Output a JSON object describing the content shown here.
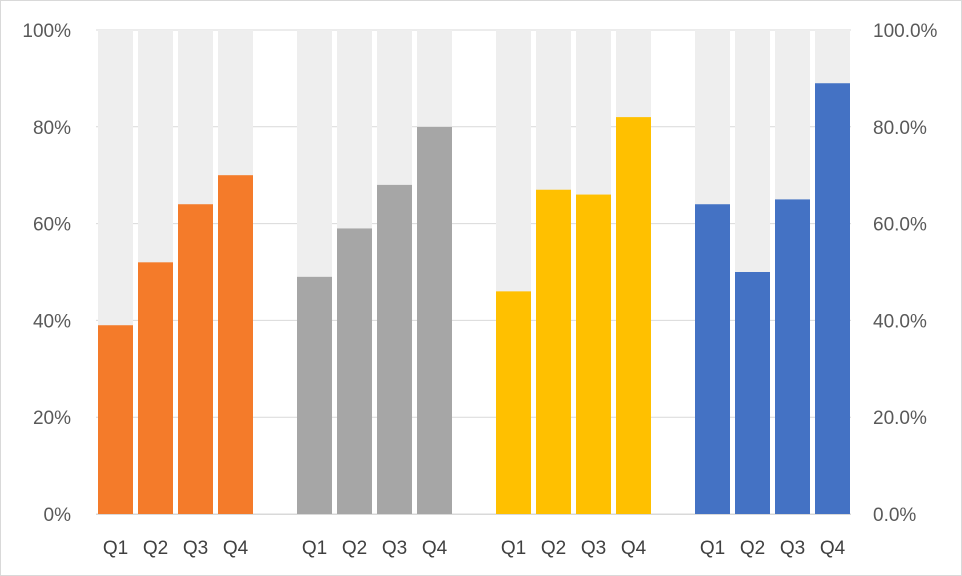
{
  "chart_data": {
    "type": "bar",
    "title": "",
    "xlabel": "",
    "ylabel": "",
    "ylim": [
      0,
      100
    ],
    "grid": true,
    "legend": "none",
    "left_axis_ticks": [
      "0%",
      "20%",
      "40%",
      "60%",
      "80%",
      "100%"
    ],
    "right_axis_ticks": [
      "0.0%",
      "20.0%",
      "40.0%",
      "60.0%",
      "80.0%",
      "100.0%"
    ],
    "background_bar_value": 100,
    "background_bar_color": "#eeeeee",
    "groups": [
      {
        "color": "#f47b2a",
        "categories": [
          "Q1",
          "Q2",
          "Q3",
          "Q4"
        ],
        "values": [
          39,
          52,
          64,
          70
        ]
      },
      {
        "color": "#a6a6a6",
        "categories": [
          "Q1",
          "Q2",
          "Q3",
          "Q4"
        ],
        "values": [
          49,
          59,
          68,
          80
        ]
      },
      {
        "color": "#ffc000",
        "categories": [
          "Q1",
          "Q2",
          "Q3",
          "Q4"
        ],
        "values": [
          46,
          67,
          66,
          82
        ]
      },
      {
        "color": "#4472c4",
        "categories": [
          "Q1",
          "Q2",
          "Q3",
          "Q4"
        ],
        "values": [
          64,
          50,
          65,
          89
        ]
      }
    ]
  }
}
